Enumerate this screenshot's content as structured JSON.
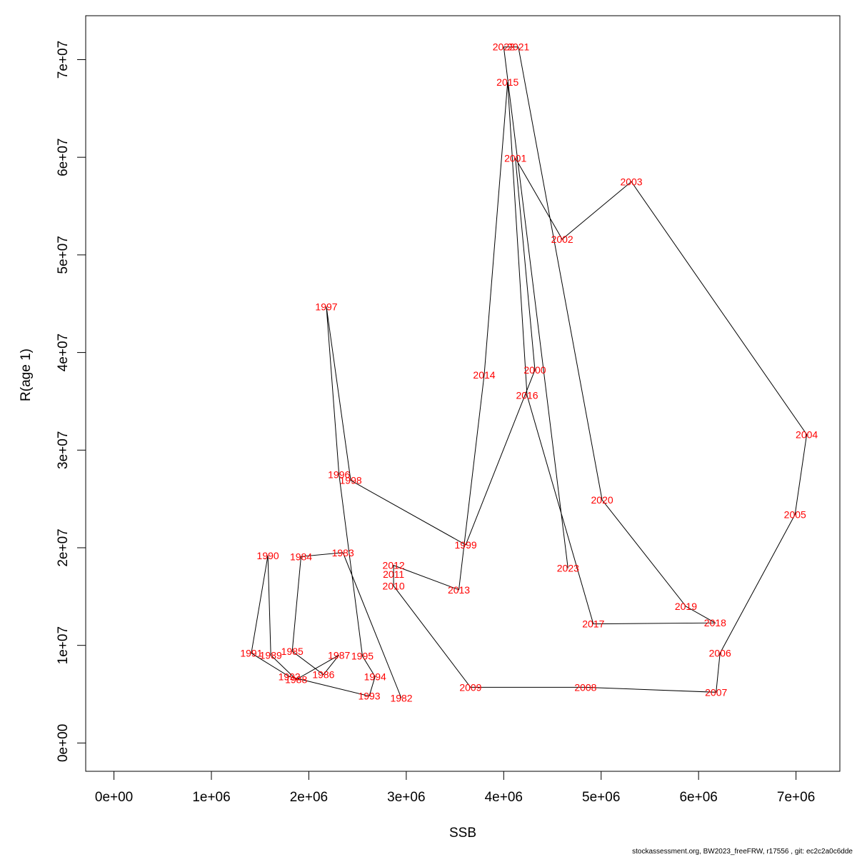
{
  "chart_data": {
    "type": "line",
    "title": "",
    "xlabel": "SSB",
    "ylabel": "R(age 1)",
    "xlim": [
      -290000,
      7450000
    ],
    "ylim": [
      -2900000,
      74500000
    ],
    "x_ticks": [
      {
        "value": 0,
        "label": "0e+00"
      },
      {
        "value": 1000000,
        "label": "1e+06"
      },
      {
        "value": 2000000,
        "label": "2e+06"
      },
      {
        "value": 3000000,
        "label": "3e+06"
      },
      {
        "value": 4000000,
        "label": "4e+06"
      },
      {
        "value": 5000000,
        "label": "5e+06"
      },
      {
        "value": 6000000,
        "label": "6e+06"
      },
      {
        "value": 7000000,
        "label": "7e+06"
      }
    ],
    "y_ticks": [
      {
        "value": 0,
        "label": "0e+00"
      },
      {
        "value": 10000000,
        "label": "1e+07"
      },
      {
        "value": 20000000,
        "label": "2e+07"
      },
      {
        "value": 30000000,
        "label": "3e+07"
      },
      {
        "value": 40000000,
        "label": "4e+07"
      },
      {
        "value": 50000000,
        "label": "5e+07"
      },
      {
        "value": 60000000,
        "label": "6e+07"
      },
      {
        "value": 70000000,
        "label": "7e+07"
      }
    ],
    "grid": false,
    "line_color": "#000000",
    "label_color": "#ff0000",
    "points": [
      {
        "label": "1982",
        "x": 2950000,
        "y": 4600000
      },
      {
        "label": "1983",
        "x": 2350000,
        "y": 19500000
      },
      {
        "label": "1984",
        "x": 1920000,
        "y": 19100000
      },
      {
        "label": "1985",
        "x": 1830000,
        "y": 9400000
      },
      {
        "label": "1986",
        "x": 2150000,
        "y": 7000000
      },
      {
        "label": "1987",
        "x": 2310000,
        "y": 9000000
      },
      {
        "label": "1988",
        "x": 1870000,
        "y": 6500000
      },
      {
        "label": "1989",
        "x": 1610000,
        "y": 9000000
      },
      {
        "label": "1990",
        "x": 1580000,
        "y": 19200000
      },
      {
        "label": "1991",
        "x": 1410000,
        "y": 9200000
      },
      {
        "label": "1992",
        "x": 1800000,
        "y": 6800000
      },
      {
        "label": "1993",
        "x": 2620000,
        "y": 4800000
      },
      {
        "label": "1994",
        "x": 2680000,
        "y": 6800000
      },
      {
        "label": "1995",
        "x": 2550000,
        "y": 8900000
      },
      {
        "label": "1996",
        "x": 2310000,
        "y": 27500000
      },
      {
        "label": "1997",
        "x": 2180000,
        "y": 44700000
      },
      {
        "label": "1998",
        "x": 2430000,
        "y": 26900000
      },
      {
        "label": "1999",
        "x": 3610000,
        "y": 20300000
      },
      {
        "label": "2000",
        "x": 4320000,
        "y": 38200000
      },
      {
        "label": "2001",
        "x": 4120000,
        "y": 59900000
      },
      {
        "label": "2002",
        "x": 4600000,
        "y": 51600000
      },
      {
        "label": "2003",
        "x": 5310000,
        "y": 57500000
      },
      {
        "label": "2004",
        "x": 7110000,
        "y": 31600000
      },
      {
        "label": "2005",
        "x": 6990000,
        "y": 23400000
      },
      {
        "label": "2006",
        "x": 6220000,
        "y": 9200000
      },
      {
        "label": "2007",
        "x": 6180000,
        "y": 5200000
      },
      {
        "label": "2008",
        "x": 4840000,
        "y": 5700000
      },
      {
        "label": "2009",
        "x": 3660000,
        "y": 5700000
      },
      {
        "label": "2010",
        "x": 2870000,
        "y": 16100000
      },
      {
        "label": "2011",
        "x": 2870000,
        "y": 17300000
      },
      {
        "label": "2012",
        "x": 2870000,
        "y": 18200000
      },
      {
        "label": "2013",
        "x": 3540000,
        "y": 15700000
      },
      {
        "label": "2014",
        "x": 3800000,
        "y": 37700000
      },
      {
        "label": "2015",
        "x": 4040000,
        "y": 67700000
      },
      {
        "label": "2016",
        "x": 4240000,
        "y": 35600000
      },
      {
        "label": "2017",
        "x": 4920000,
        "y": 12200000
      },
      {
        "label": "2018",
        "x": 6170000,
        "y": 12300000
      },
      {
        "label": "2019",
        "x": 5870000,
        "y": 14000000
      },
      {
        "label": "2020",
        "x": 5010000,
        "y": 24900000
      },
      {
        "label": "2021",
        "x": 4150000,
        "y": 71300000
      },
      {
        "label": "2022",
        "x": 4000000,
        "y": 71300000
      },
      {
        "label": "2023",
        "x": 4660000,
        "y": 17900000
      }
    ]
  },
  "footer": "stockassessment.org, BW2023_freeFRW, r17556 , git: ec2c2a0c6dde"
}
